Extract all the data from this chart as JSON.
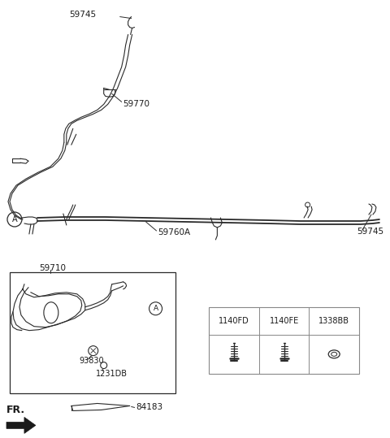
{
  "bg_color": "#ffffff",
  "line_color": "#2a2a2a",
  "table_border": "#555555",
  "labels": {
    "59745_top": "59745",
    "59770": "59770",
    "59760A": "59760A",
    "59745_right": "59745",
    "59710": "59710",
    "93830": "93830",
    "1231DB": "1231DB",
    "84183": "84183",
    "FR": "FR.",
    "1140FD": "1140FD",
    "1140FE": "1140FE",
    "1338BB": "1338BB"
  }
}
